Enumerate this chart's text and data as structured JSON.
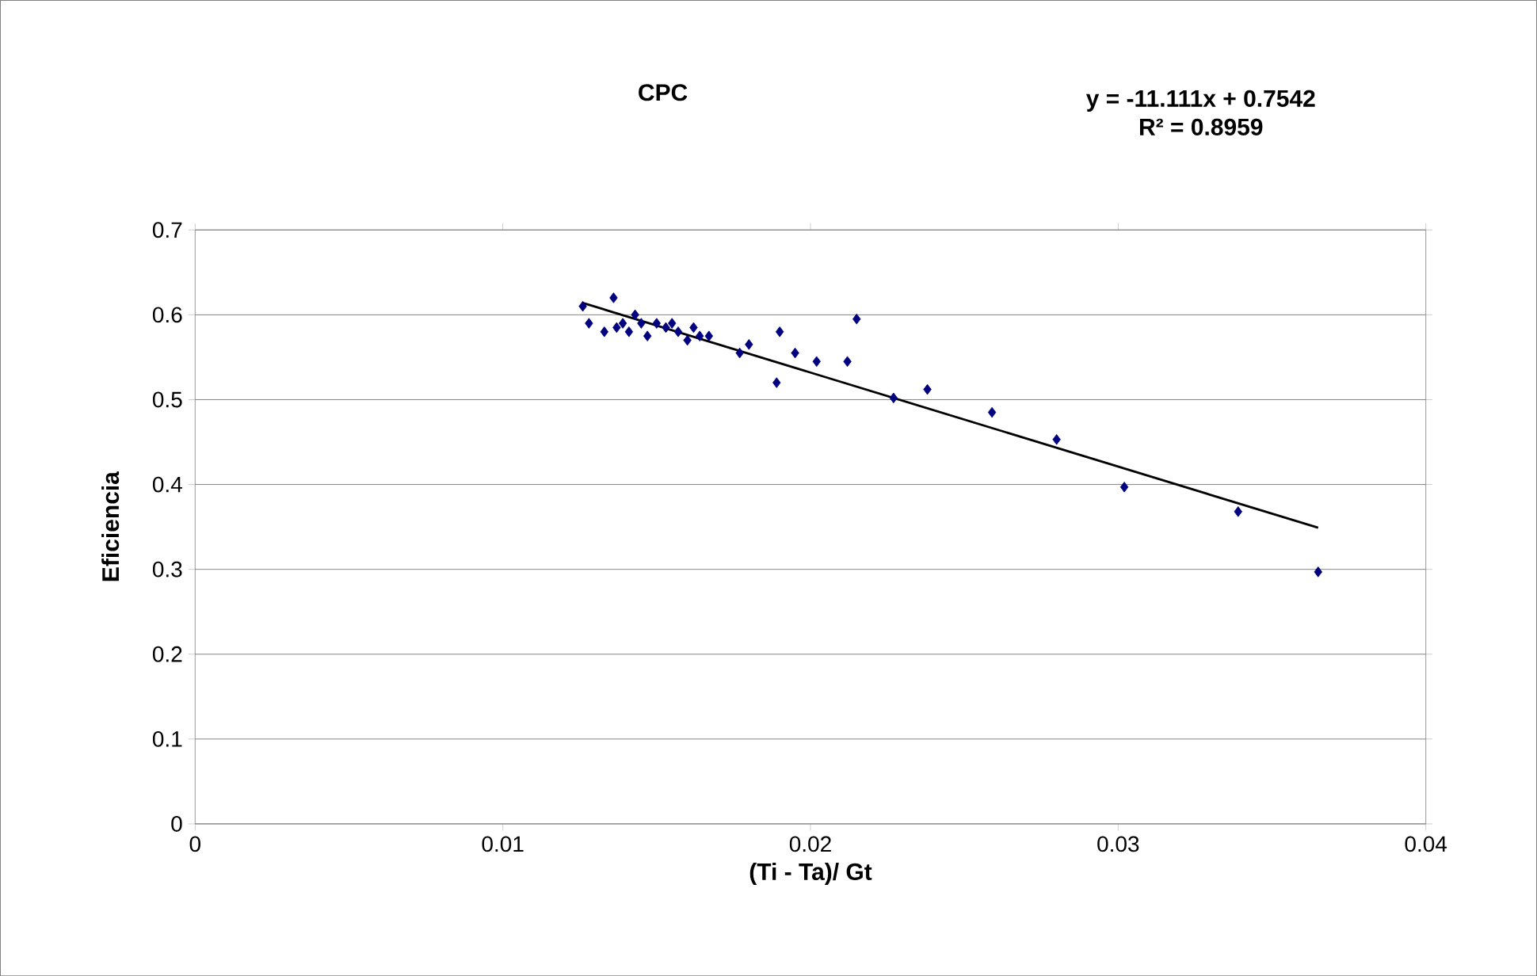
{
  "chart_data": {
    "type": "scatter",
    "title": "CPC",
    "xlabel": "(Ti - Ta)/ Gt",
    "ylabel": "Eficiencia",
    "annotations": [
      "y = -11.111x + 0.7542",
      "R² = 0.8959"
    ],
    "xlim": [
      0,
      0.04
    ],
    "xticks": [
      0,
      0.01,
      0.02,
      0.03,
      0.04
    ],
    "ylim": [
      0,
      0.7
    ],
    "yticks": [
      0,
      0.1,
      0.2,
      0.3,
      0.4,
      0.5,
      0.6,
      0.7
    ],
    "grid": "y",
    "series": [
      {
        "color": "#000080",
        "marker": "diamond",
        "x": [
          0.0126,
          0.0128,
          0.0133,
          0.0136,
          0.0137,
          0.0139,
          0.0141,
          0.0143,
          0.0145,
          0.0147,
          0.015,
          0.0153,
          0.0155,
          0.0157,
          0.016,
          0.0162,
          0.0164,
          0.0167,
          0.0177,
          0.018,
          0.0189,
          0.019,
          0.0195,
          0.0202,
          0.0212,
          0.0215,
          0.0227,
          0.0238,
          0.0259,
          0.028,
          0.0302,
          0.0339,
          0.0365
        ],
        "values": [
          0.61,
          0.59,
          0.58,
          0.62,
          0.585,
          0.59,
          0.58,
          0.6,
          0.59,
          0.575,
          0.59,
          0.585,
          0.59,
          0.58,
          0.57,
          0.585,
          0.575,
          0.575,
          0.555,
          0.565,
          0.52,
          0.58,
          0.555,
          0.545,
          0.545,
          0.595,
          0.502,
          0.512,
          0.485,
          0.453,
          0.397,
          0.368,
          0.297
        ]
      },
      {
        "type": "line",
        "color": "#000000",
        "marker": "none",
        "line_style": "solid",
        "x": [
          0.0126,
          0.0365
        ],
        "values": [
          0.614,
          0.349
        ]
      }
    ]
  }
}
